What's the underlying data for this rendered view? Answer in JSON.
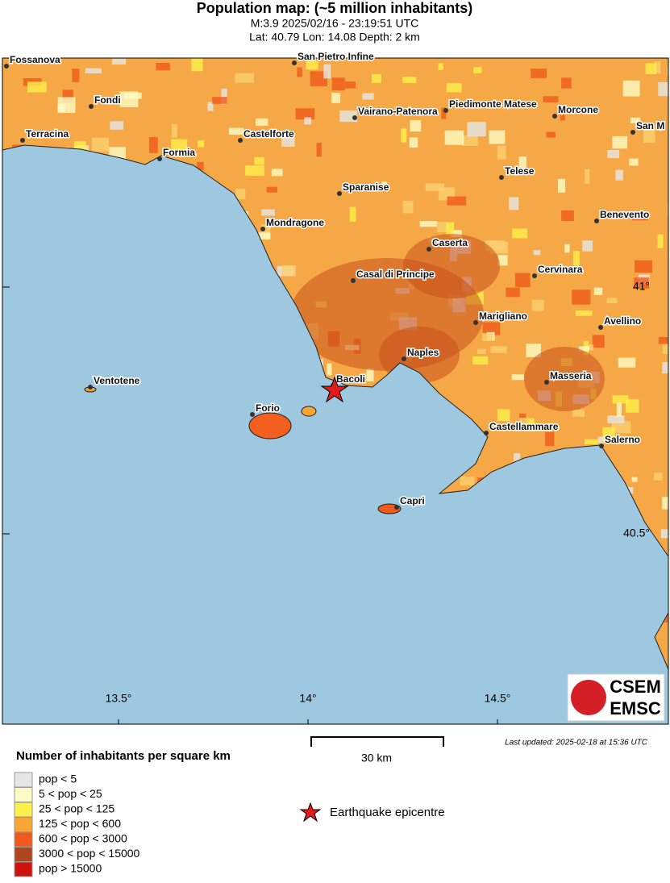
{
  "header": {
    "title": "Population map: (~5 million inhabitants)",
    "line1": "M:3.9 2025/02/16 - 23:19:51 UTC",
    "line2": "Lat: 40.79 Lon: 14.08 Depth: 2 km"
  },
  "map": {
    "places": [
      "Fossanova",
      "San Pietro Infine",
      "Fondi",
      "Terracina",
      "Vairano-Patenora",
      "Piedimonte Matese",
      "Morcone",
      "San M",
      "Castelforte",
      "Formia",
      "Telese",
      "Sparanise",
      "Benevento",
      "Mondragone",
      "Caserta",
      "Cervinara",
      "Casal di Principe",
      "Marigliano",
      "Avellino",
      "Naples",
      "Ventotene",
      "Masseria",
      "Bacoli",
      "Forio",
      "Castellammare",
      "Salerno",
      "Capri"
    ],
    "lon_labels": [
      "13.5°",
      "14°",
      "14.5°"
    ],
    "lat_labels": [
      "41°",
      "40.5°"
    ],
    "scale": "30 km",
    "logo": [
      "CSEM",
      "EMSC"
    ],
    "updated": "Last updated: 2025-02-18 at 15:36 UTC"
  },
  "legend": {
    "title": "Number of inhabitants per square km",
    "items": [
      {
        "label": "pop < 5",
        "color": "#e6e6e6"
      },
      {
        "label": "5 < pop < 25",
        "color": "#fdfcc6"
      },
      {
        "label": "25 < pop < 125",
        "color": "#fcf04a"
      },
      {
        "label": "125 < pop < 600",
        "color": "#f8a535"
      },
      {
        "label": "600 < pop < 3000",
        "color": "#f05a1c"
      },
      {
        "label": "3000 < pop < 15000",
        "color": "#b0461c"
      },
      {
        "label": "pop > 15000",
        "color": "#d0120f"
      }
    ],
    "epicentre": "Earthquake epicentre"
  }
}
